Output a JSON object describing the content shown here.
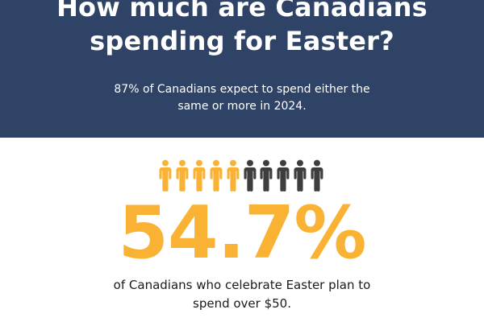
{
  "header": {
    "title": "How much are Canadians\nspending for Easter?",
    "subtitle": "87% of Canadians expect to spend either the\nsame or more in 2024."
  },
  "people_chart": {
    "total": 10,
    "highlighted": 5,
    "highlight_color": "#f9b233",
    "base_color": "#3d3d3d",
    "icon": "person-icon"
  },
  "stat": {
    "value": "54.7%",
    "caption": "of Canadians who celebrate Easter plan to\nspend over $50."
  },
  "colors": {
    "header_bg": "#2e4365",
    "accent": "#f9b233"
  }
}
